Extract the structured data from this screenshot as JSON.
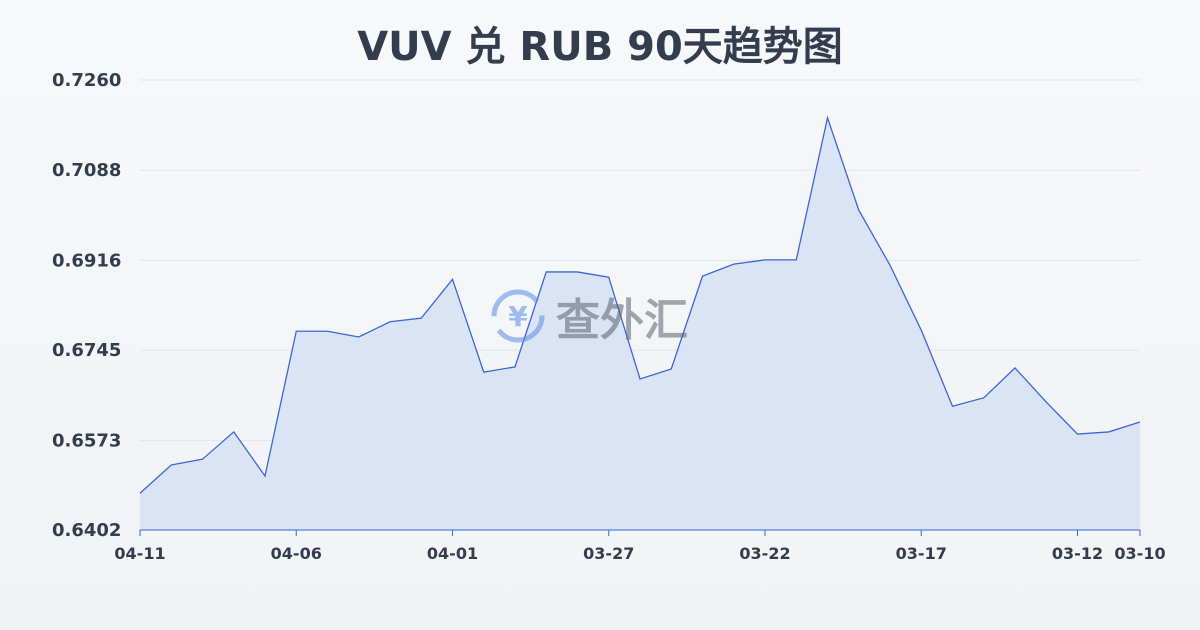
{
  "chart_data": {
    "type": "area",
    "title": "VUV 兑 RUB 90天趋势图",
    "x": [
      "04-11",
      "04-10",
      "04-09",
      "04-08",
      "04-07",
      "04-06",
      "04-05",
      "04-04",
      "04-03",
      "04-02",
      "04-01",
      "03-31",
      "03-30",
      "03-29",
      "03-28",
      "03-27",
      "03-26",
      "03-25",
      "03-24",
      "03-23",
      "03-22",
      "03-21",
      "03-20",
      "03-19",
      "03-18",
      "03-17",
      "03-16",
      "03-15",
      "03-14",
      "03-13",
      "03-12",
      "03-11",
      "03-10"
    ],
    "values": [
      0.6472,
      0.6526,
      0.6537,
      0.6589,
      0.6505,
      0.6781,
      0.6781,
      0.677,
      0.6799,
      0.6806,
      0.688,
      0.6703,
      0.6713,
      0.6894,
      0.6894,
      0.6884,
      0.669,
      0.6709,
      0.6886,
      0.6909,
      0.6917,
      0.6917,
      0.7188,
      0.7012,
      0.6907,
      0.6783,
      0.6638,
      0.6654,
      0.6711,
      0.6646,
      0.6585,
      0.6589,
      0.6608
    ],
    "xtick_labels": [
      "04-11",
      "04-06",
      "04-01",
      "03-27",
      "03-22",
      "03-17",
      "03-12",
      "03-10"
    ],
    "yticks": [
      "0.7260",
      "0.7088",
      "0.6916",
      "0.6745",
      "0.6573",
      "0.6402"
    ],
    "ylim": [
      0.6402,
      0.726
    ],
    "grid": true,
    "line_color": "#3a66d4",
    "fill_color": "#d6e0f5"
  },
  "watermark": {
    "text": "查外汇",
    "icon": "yen-exchange-icon"
  }
}
